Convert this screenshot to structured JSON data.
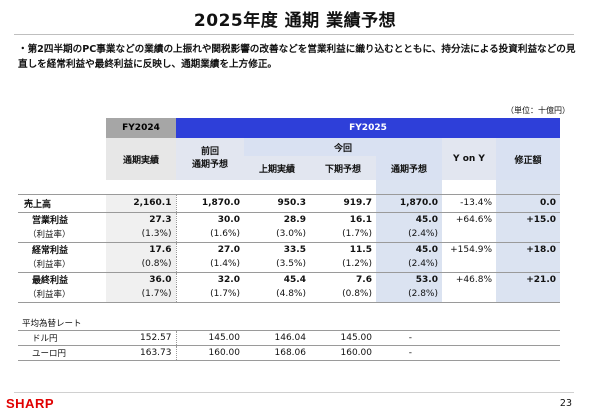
{
  "title": "2025年度 通期 業績予想",
  "bullet": "・第2四半期のPC事業などの業績の上振れや関税影響の改善などを営業利益に織り込むとともに、持分法による投資利益などの見直しを経常利益や最終利益に反映し、通期業績を上方修正。",
  "unit": "（単位：十億円）",
  "headers": {
    "fy2024": "FY2024",
    "fy2025": "FY2025",
    "actual": "通期実績",
    "prev_forecast": "前回\n通期予想",
    "current": "今回",
    "h1_actual": "上期実績",
    "h2_forecast": "下期予想",
    "full_forecast": "通期予想",
    "yoy": "Y on Y",
    "revision": "修正額"
  },
  "rows": [
    {
      "label": "売上高",
      "fy24": "2,160.1",
      "prev": "1,870.0",
      "h1": "950.3",
      "h2": "919.7",
      "full": "1,870.0",
      "yoy": "-13.4%",
      "rev": "0.0"
    },
    {
      "label": "営業利益",
      "fy24": "27.3",
      "prev": "30.0",
      "h1": "28.9",
      "h2": "16.1",
      "full": "45.0",
      "yoy": "+64.6%",
      "rev": "+15.0"
    },
    {
      "label": "（利益率）",
      "fy24": "(1.3%)",
      "prev": "(1.6%)",
      "h1": "(3.0%)",
      "h2": "(1.7%)",
      "full": "(2.4%)",
      "yoy": "",
      "rev": ""
    },
    {
      "label": "経常利益",
      "fy24": "17.6",
      "prev": "27.0",
      "h1": "33.5",
      "h2": "11.5",
      "full": "45.0",
      "yoy": "+154.9%",
      "rev": "+18.0"
    },
    {
      "label": "（利益率）",
      "fy24": "(0.8%)",
      "prev": "(1.4%)",
      "h1": "(3.5%)",
      "h2": "(1.2%)",
      "full": "(2.4%)",
      "yoy": "",
      "rev": ""
    },
    {
      "label": "最終利益",
      "fy24": "36.0",
      "prev": "32.0",
      "h1": "45.4",
      "h2": "7.6",
      "full": "53.0",
      "yoy": "+46.8%",
      "rev": "+21.0"
    },
    {
      "label": "（利益率）",
      "fy24": "(1.7%)",
      "prev": "(1.7%)",
      "h1": "(4.8%)",
      "h2": "(0.8%)",
      "full": "(2.8%)",
      "yoy": "",
      "rev": ""
    }
  ],
  "fx": {
    "title": "平均為替レート",
    "rows": [
      {
        "label": "ドル円",
        "fy24": "152.57",
        "prev": "145.00",
        "h1": "146.04",
        "h2": "145.00",
        "full": "-"
      },
      {
        "label": "ユーロ円",
        "fy24": "163.73",
        "prev": "160.00",
        "h1": "168.06",
        "h2": "160.00",
        "full": "-"
      }
    ]
  },
  "footer": {
    "logo": "SHARP",
    "page": "23"
  }
}
